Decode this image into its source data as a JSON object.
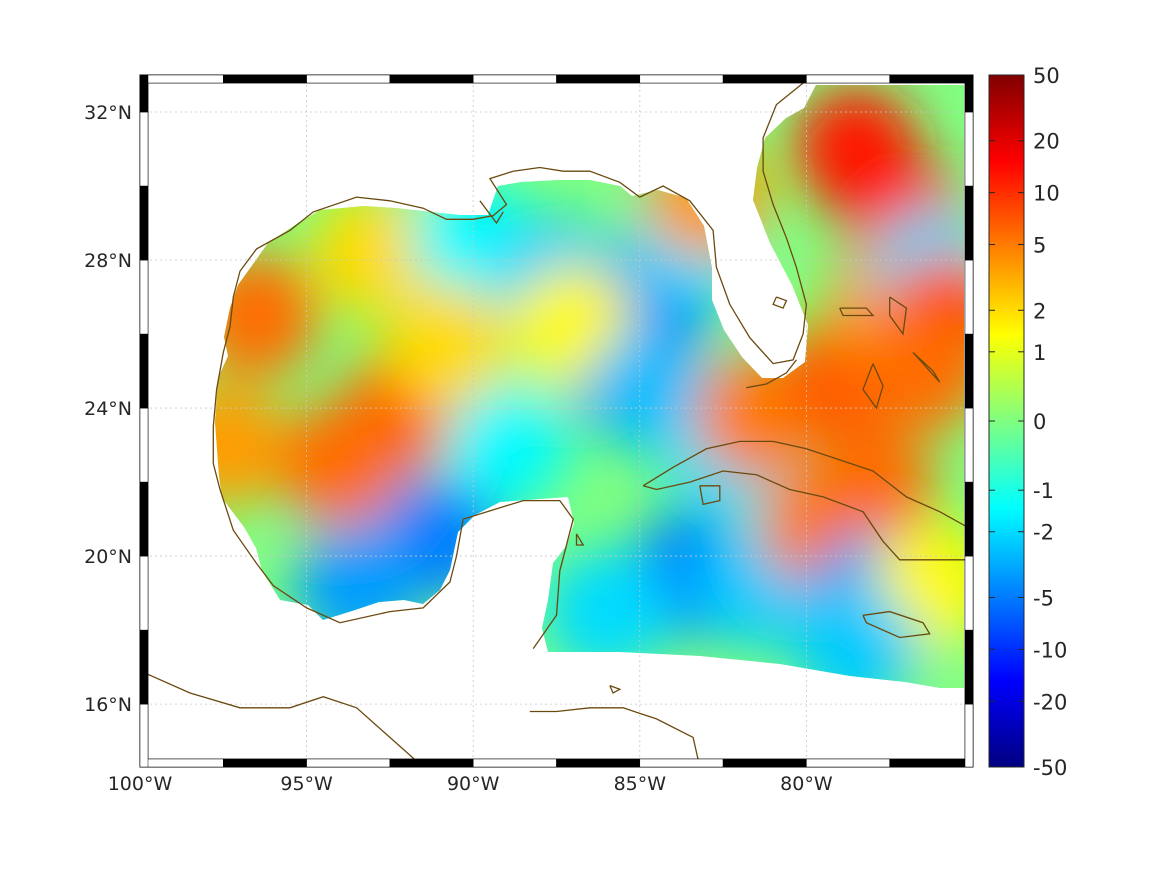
{
  "map": {
    "projection": "equirectangular",
    "extent": {
      "lon_min": -100,
      "lon_max": -75,
      "lat_min": 14.3,
      "lat_max": 33
    },
    "grid": true,
    "x_ticks": [
      {
        "lon": -100,
        "label": "100°W"
      },
      {
        "lon": -95,
        "label": "95°W"
      },
      {
        "lon": -90,
        "label": "90°W"
      },
      {
        "lon": -85,
        "label": "85°W"
      },
      {
        "lon": -80,
        "label": "80°W"
      }
    ],
    "y_ticks": [
      {
        "lat": 32,
        "label": "32°N"
      },
      {
        "lat": 28,
        "label": "28°N"
      },
      {
        "lat": 24,
        "label": "24°N"
      },
      {
        "lat": 20,
        "label": "20°N"
      },
      {
        "lat": 16,
        "label": "16°N"
      }
    ],
    "coastline_color": "#6b4a10",
    "land_color": "#ffffff",
    "field_blobs": [
      {
        "lon": -96.5,
        "lat": 26.5,
        "value": 6
      },
      {
        "lon": -92,
        "lat": 24.0,
        "value": 7
      },
      {
        "lon": -94,
        "lat": 22.5,
        "value": 6
      },
      {
        "lon": -97.5,
        "lat": 23.0,
        "value": 4
      },
      {
        "lon": -93,
        "lat": 28.2,
        "value": 2
      },
      {
        "lon": -90,
        "lat": 28.5,
        "value": -1.5
      },
      {
        "lon": -87.5,
        "lat": 27.5,
        "value": -2.5
      },
      {
        "lon": -85.5,
        "lat": 25.0,
        "value": -7
      },
      {
        "lon": -84.5,
        "lat": 27.0,
        "value": -5
      },
      {
        "lon": -83.5,
        "lat": 28.5,
        "value": -2
      },
      {
        "lon": -91,
        "lat": 20.5,
        "value": -5
      },
      {
        "lon": -93.5,
        "lat": 19.2,
        "value": -4
      },
      {
        "lon": -89,
        "lat": 23.0,
        "value": -1.5
      },
      {
        "lon": -87,
        "lat": 26.2,
        "value": 1.5
      },
      {
        "lon": -90.8,
        "lat": 25.7,
        "value": 2
      },
      {
        "lon": -83,
        "lat": 29.7,
        "value": 4
      },
      {
        "lon": -84.7,
        "lat": 24.5,
        "value": -3
      },
      {
        "lon": -83.5,
        "lat": 19.5,
        "value": -5
      },
      {
        "lon": -86,
        "lat": 18.5,
        "value": -2
      },
      {
        "lon": -81.5,
        "lat": 19.2,
        "value": -2.5
      },
      {
        "lon": -79.5,
        "lat": 20.8,
        "value": 5
      },
      {
        "lon": -78,
        "lat": 21.8,
        "value": 6
      },
      {
        "lon": -78,
        "lat": 19.0,
        "value": -4
      },
      {
        "lon": -76.2,
        "lat": 19.2,
        "value": 1.5
      },
      {
        "lon": -82.5,
        "lat": 22.8,
        "value": -2
      },
      {
        "lon": -81.5,
        "lat": 23.8,
        "value": 5
      },
      {
        "lon": -79,
        "lat": 24.7,
        "value": 7
      },
      {
        "lon": -78.5,
        "lat": 31.0,
        "value": 13
      },
      {
        "lon": -77,
        "lat": 29.0,
        "value": 12
      },
      {
        "lon": -77.5,
        "lat": 26.8,
        "value": 4
      },
      {
        "lon": -76.2,
        "lat": 27.7,
        "value": -2
      },
      {
        "lon": -75.8,
        "lat": 26.5,
        "value": 8
      },
      {
        "lon": -76.5,
        "lat": 25.0,
        "value": 6
      },
      {
        "lon": -78.5,
        "lat": 17.5,
        "value": -2.5
      }
    ]
  },
  "colorbar": {
    "scale": "symmetric-log",
    "colors": [
      "#000080",
      "#0000ff",
      "#0080ff",
      "#00ffff",
      "#80ff80",
      "#ffff00",
      "#ff8000",
      "#ff0000",
      "#800000"
    ],
    "ticks": [
      {
        "value": 50,
        "label": "50"
      },
      {
        "value": 20,
        "label": "20"
      },
      {
        "value": 10,
        "label": "10"
      },
      {
        "value": 5,
        "label": "5"
      },
      {
        "value": 2,
        "label": "2"
      },
      {
        "value": 1,
        "label": "1"
      },
      {
        "value": 0,
        "label": "0"
      },
      {
        "value": -1,
        "label": "-1"
      },
      {
        "value": -2,
        "label": "-2"
      },
      {
        "value": -5,
        "label": "-5"
      },
      {
        "value": -10,
        "label": "-10"
      },
      {
        "value": -20,
        "label": "-20"
      },
      {
        "value": -50,
        "label": "-50"
      }
    ]
  }
}
